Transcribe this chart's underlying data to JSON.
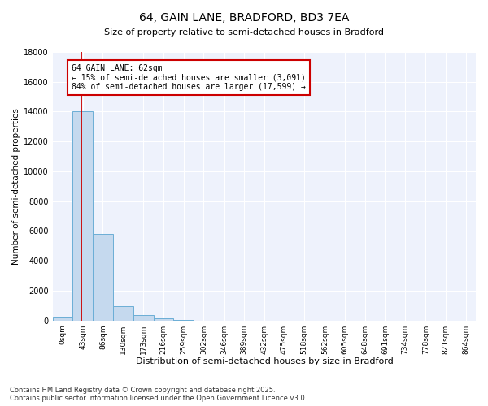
{
  "title": "64, GAIN LANE, BRADFORD, BD3 7EA",
  "subtitle": "Size of property relative to semi-detached houses in Bradford",
  "xlabel": "Distribution of semi-detached houses by size in Bradford",
  "ylabel": "Number of semi-detached properties",
  "annotation_text": "64 GAIN LANE: 62sqm\n← 15% of semi-detached houses are smaller (3,091)\n84% of semi-detached houses are larger (17,599) →",
  "bin_labels": [
    "0sqm",
    "43sqm",
    "86sqm",
    "130sqm",
    "173sqm",
    "216sqm",
    "259sqm",
    "302sqm",
    "346sqm",
    "389sqm",
    "432sqm",
    "475sqm",
    "518sqm",
    "562sqm",
    "605sqm",
    "648sqm",
    "691sqm",
    "734sqm",
    "778sqm",
    "821sqm",
    "864sqm"
  ],
  "bin_edges": [
    0,
    43,
    86,
    130,
    173,
    216,
    259,
    302,
    346,
    389,
    432,
    475,
    518,
    562,
    605,
    648,
    691,
    734,
    778,
    821,
    864
  ],
  "bar_values": [
    200,
    14000,
    5800,
    950,
    350,
    130,
    55,
    0,
    0,
    0,
    0,
    0,
    0,
    0,
    0,
    0,
    0,
    0,
    0,
    0
  ],
  "bar_color": "#c5d9ee",
  "bar_edgecolor": "#6baed6",
  "vline_x": 62,
  "vline_color": "#cc0000",
  "annotation_box_edgecolor": "#cc0000",
  "ylim": [
    0,
    18000
  ],
  "yticks": [
    0,
    2000,
    4000,
    6000,
    8000,
    10000,
    12000,
    14000,
    16000,
    18000
  ],
  "background_color": "#eef2fc",
  "grid_color": "#ffffff",
  "footer_text": "Contains HM Land Registry data © Crown copyright and database right 2025.\nContains public sector information licensed under the Open Government Licence v3.0.",
  "title_fontsize": 10,
  "xlabel_fontsize": 8,
  "ylabel_fontsize": 7.5,
  "tick_fontsize": 7,
  "annotation_fontsize": 7,
  "footer_fontsize": 6
}
